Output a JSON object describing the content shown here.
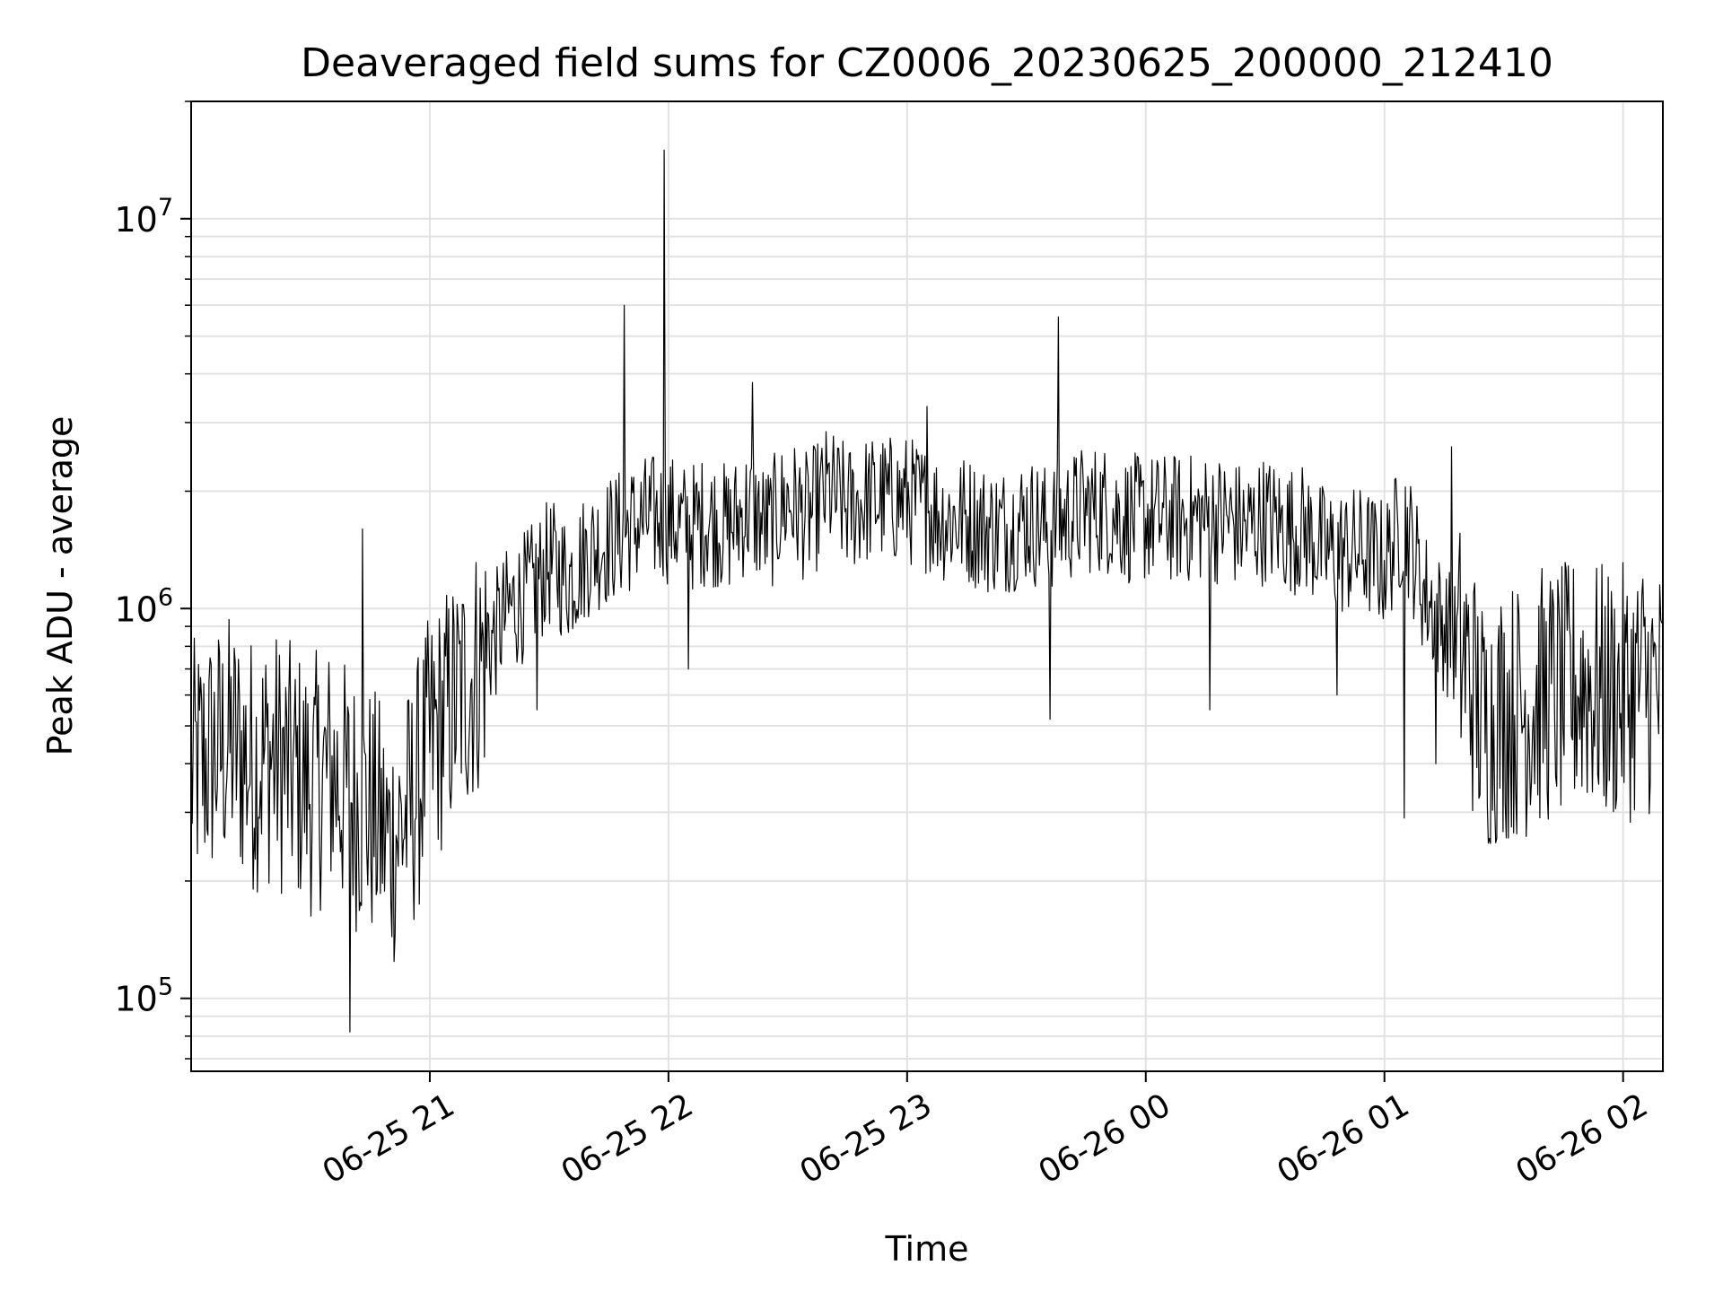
{
  "chart_data": {
    "type": "line",
    "title": "Deaveraged field sums for CZ0006_20230625_200000_212410",
    "xlabel": "Time",
    "ylabel": "Peak ADU - average",
    "yscale": "log",
    "ylim": [
      65000,
      20000000
    ],
    "xlim": [
      "2023-06-25T20:00:00",
      "2023-06-26T02:10:00"
    ],
    "grid": true,
    "line_color": "#000000",
    "x_ticks": [
      {
        "t": "2023-06-25T21:00:00",
        "label": "06-25 21"
      },
      {
        "t": "2023-06-25T22:00:00",
        "label": "06-25 22"
      },
      {
        "t": "2023-06-25T23:00:00",
        "label": "06-25 23"
      },
      {
        "t": "2023-06-26T00:00:00",
        "label": "06-26 00"
      },
      {
        "t": "2023-06-26T01:00:00",
        "label": "06-26 01"
      },
      {
        "t": "2023-06-26T02:00:00",
        "label": "06-26 02"
      }
    ],
    "y_ticks": [
      {
        "v": 100000,
        "base": "10",
        "exp": "5"
      },
      {
        "v": 1000000,
        "base": "10",
        "exp": "6"
      },
      {
        "v": 10000000,
        "base": "10",
        "exp": "7"
      }
    ],
    "series": [
      {
        "x": [
          "2023-06-25T20:00:00",
          "2023-06-25T20:05:00",
          "2023-06-25T20:10:00",
          "2023-06-25T20:15:00",
          "2023-06-25T20:20:00",
          "2023-06-25T20:25:00",
          "2023-06-25T20:30:00",
          "2023-06-25T20:35:00",
          "2023-06-25T20:40:00",
          "2023-06-25T20:45:00",
          "2023-06-25T20:50:00",
          "2023-06-25T20:55:00",
          "2023-06-25T21:00:00",
          "2023-06-25T21:05:00",
          "2023-06-25T21:10:00",
          "2023-06-25T21:15:00",
          "2023-06-25T21:20:00",
          "2023-06-25T21:25:00",
          "2023-06-25T21:30:00",
          "2023-06-25T21:35:00",
          "2023-06-25T21:40:00",
          "2023-06-25T21:45:00",
          "2023-06-25T21:50:00",
          "2023-06-25T21:55:00",
          "2023-06-25T22:00:00",
          "2023-06-25T22:05:00",
          "2023-06-25T22:10:00",
          "2023-06-25T22:15:00",
          "2023-06-25T22:20:00",
          "2023-06-25T22:25:00",
          "2023-06-25T22:30:00",
          "2023-06-25T22:35:00",
          "2023-06-25T22:40:00",
          "2023-06-25T22:45:00",
          "2023-06-25T22:50:00",
          "2023-06-25T22:55:00",
          "2023-06-25T23:00:00",
          "2023-06-25T23:05:00",
          "2023-06-25T23:10:00",
          "2023-06-25T23:15:00",
          "2023-06-25T23:20:00",
          "2023-06-25T23:25:00",
          "2023-06-25T23:30:00",
          "2023-06-25T23:35:00",
          "2023-06-25T23:40:00",
          "2023-06-25T23:45:00",
          "2023-06-25T23:50:00",
          "2023-06-25T23:55:00",
          "2023-06-26T00:00:00",
          "2023-06-26T00:05:00",
          "2023-06-26T00:10:00",
          "2023-06-26T00:15:00",
          "2023-06-26T00:20:00",
          "2023-06-26T00:25:00",
          "2023-06-26T00:30:00",
          "2023-06-26T00:35:00",
          "2023-06-26T00:40:00",
          "2023-06-26T00:45:00",
          "2023-06-26T00:50:00",
          "2023-06-26T00:55:00",
          "2023-06-26T01:00:00",
          "2023-06-26T01:05:00",
          "2023-06-26T01:10:00",
          "2023-06-26T01:15:00",
          "2023-06-26T01:20:00",
          "2023-06-26T01:25:00",
          "2023-06-26T01:30:00",
          "2023-06-26T01:35:00",
          "2023-06-26T01:40:00",
          "2023-06-26T01:45:00",
          "2023-06-26T01:50:00",
          "2023-06-26T01:55:00",
          "2023-06-26T02:00:00",
          "2023-06-26T02:05:00",
          "2023-06-26T02:10:00"
        ],
        "values": [
          380000,
          420000,
          450000,
          400000,
          420000,
          380000,
          350000,
          380000,
          330000,
          300000,
          250000,
          300000,
          450000,
          550000,
          650000,
          800000,
          1000000,
          1100000,
          1300000,
          1200000,
          1400000,
          1500000,
          1600000,
          1700000,
          1700000,
          1600000,
          1700000,
          1600000,
          1800000,
          1600000,
          1900000,
          1700000,
          2000000,
          1800000,
          1900000,
          1900000,
          1900000,
          1800000,
          1700000,
          1700000,
          1600000,
          1600000,
          1700000,
          1600000,
          1700000,
          1800000,
          1800000,
          1700000,
          1700000,
          1700000,
          1700000,
          1700000,
          1700000,
          1600000,
          1700000,
          1600000,
          1600000,
          1400000,
          1400000,
          1400000,
          1300000,
          1700000,
          1100000,
          900000,
          750000,
          500000,
          550000,
          550000,
          600000,
          600000,
          650000,
          600000,
          600000,
          650000,
          600000
        ],
        "spikes": [
          {
            "t": "2023-06-25T20:40:00",
            "v": 82000
          },
          {
            "t": "2023-06-25T20:43:00",
            "v": 1600000
          },
          {
            "t": "2023-06-25T21:49:00",
            "v": 6000000
          },
          {
            "t": "2023-06-25T21:59:00",
            "v": 15000000
          },
          {
            "t": "2023-06-25T22:21:00",
            "v": 3800000
          },
          {
            "t": "2023-06-25T22:05:00",
            "v": 700000
          },
          {
            "t": "2023-06-25T23:05:00",
            "v": 3300000
          },
          {
            "t": "2023-06-25T23:38:00",
            "v": 5600000
          },
          {
            "t": "2023-06-25T23:36:00",
            "v": 520000
          },
          {
            "t": "2023-06-26T00:16:00",
            "v": 550000
          },
          {
            "t": "2023-06-26T00:48:00",
            "v": 600000
          },
          {
            "t": "2023-06-26T01:05:00",
            "v": 290000
          },
          {
            "t": "2023-06-26T01:17:00",
            "v": 2600000
          },
          {
            "t": "2023-06-26T01:13:00",
            "v": 400000
          },
          {
            "t": "2023-06-25T21:27:00",
            "v": 550000
          }
        ]
      }
    ]
  }
}
